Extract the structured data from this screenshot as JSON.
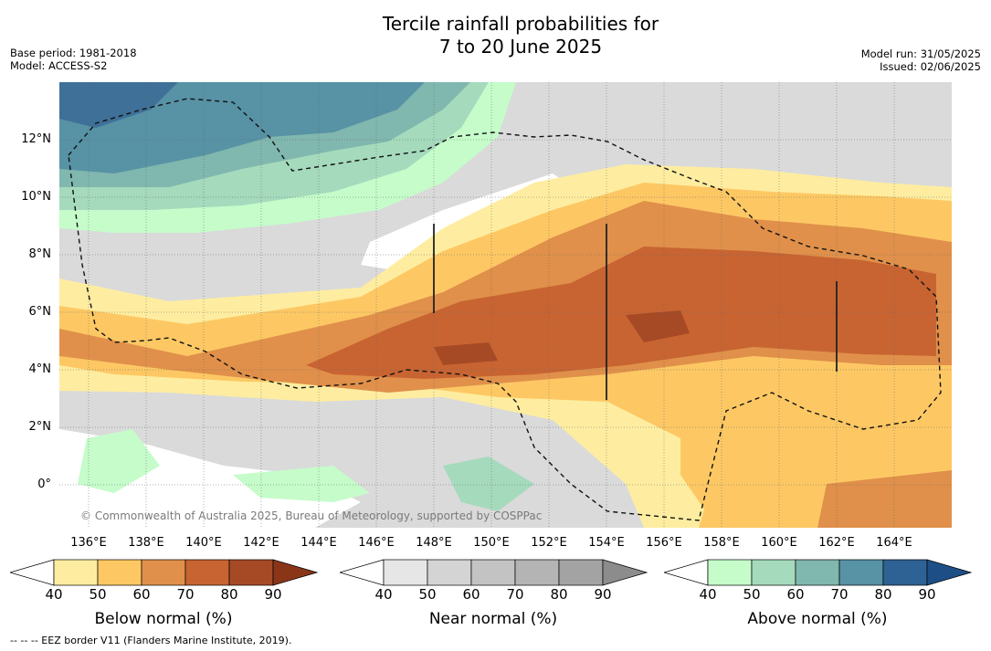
{
  "title": {
    "line1": "Tercile rainfall probabilities for",
    "line2": "7 to 20 June 2025"
  },
  "meta": {
    "base_period": "Base period: 1981-2018",
    "model": "Model: ACCESS-S2",
    "model_run": "Model run: 31/05/2025",
    "issued": "Issued: 02/06/2025"
  },
  "map": {
    "lat_labels": [
      "12°N",
      "10°N",
      "8°N",
      "6°N",
      "4°N",
      "2°N",
      "0°"
    ],
    "lon_labels": [
      "136°E",
      "138°E",
      "140°E",
      "142°E",
      "144°E",
      "146°E",
      "148°E",
      "150°E",
      "152°E",
      "154°E",
      "156°E",
      "158°E",
      "160°E",
      "162°E",
      "164°E"
    ],
    "copyright": "© Commonwealth of Australia 2025, Bureau of Meteorology, supported by COSPPac"
  },
  "colorbars": [
    {
      "title": "Below normal (%)",
      "ticks": [
        "40",
        "50",
        "60",
        "70",
        "80",
        "90"
      ],
      "colors": [
        "#ffffff",
        "#feeda0",
        "#fdc864",
        "#e0904a",
        "#c86432",
        "#a64a26",
        "#8b3518"
      ]
    },
    {
      "title": "Near normal (%)",
      "ticks": [
        "40",
        "50",
        "60",
        "70",
        "80",
        "90"
      ],
      "colors": [
        "#ffffff",
        "#e6e6e6",
        "#d4d4d4",
        "#c3c3c3",
        "#b4b4b4",
        "#a3a3a3",
        "#8c8c8c"
      ]
    },
    {
      "title": "Above normal (%)",
      "ticks": [
        "40",
        "50",
        "60",
        "70",
        "80",
        "90"
      ],
      "colors": [
        "#ffffff",
        "#c5fcca",
        "#a5dabd",
        "#80b7ae",
        "#5792a5",
        "#2f6294",
        "#1d4f86"
      ]
    }
  ],
  "footnote": "--  --  -- EEZ border V11 (Flanders Marine Institute, 2019)."
}
